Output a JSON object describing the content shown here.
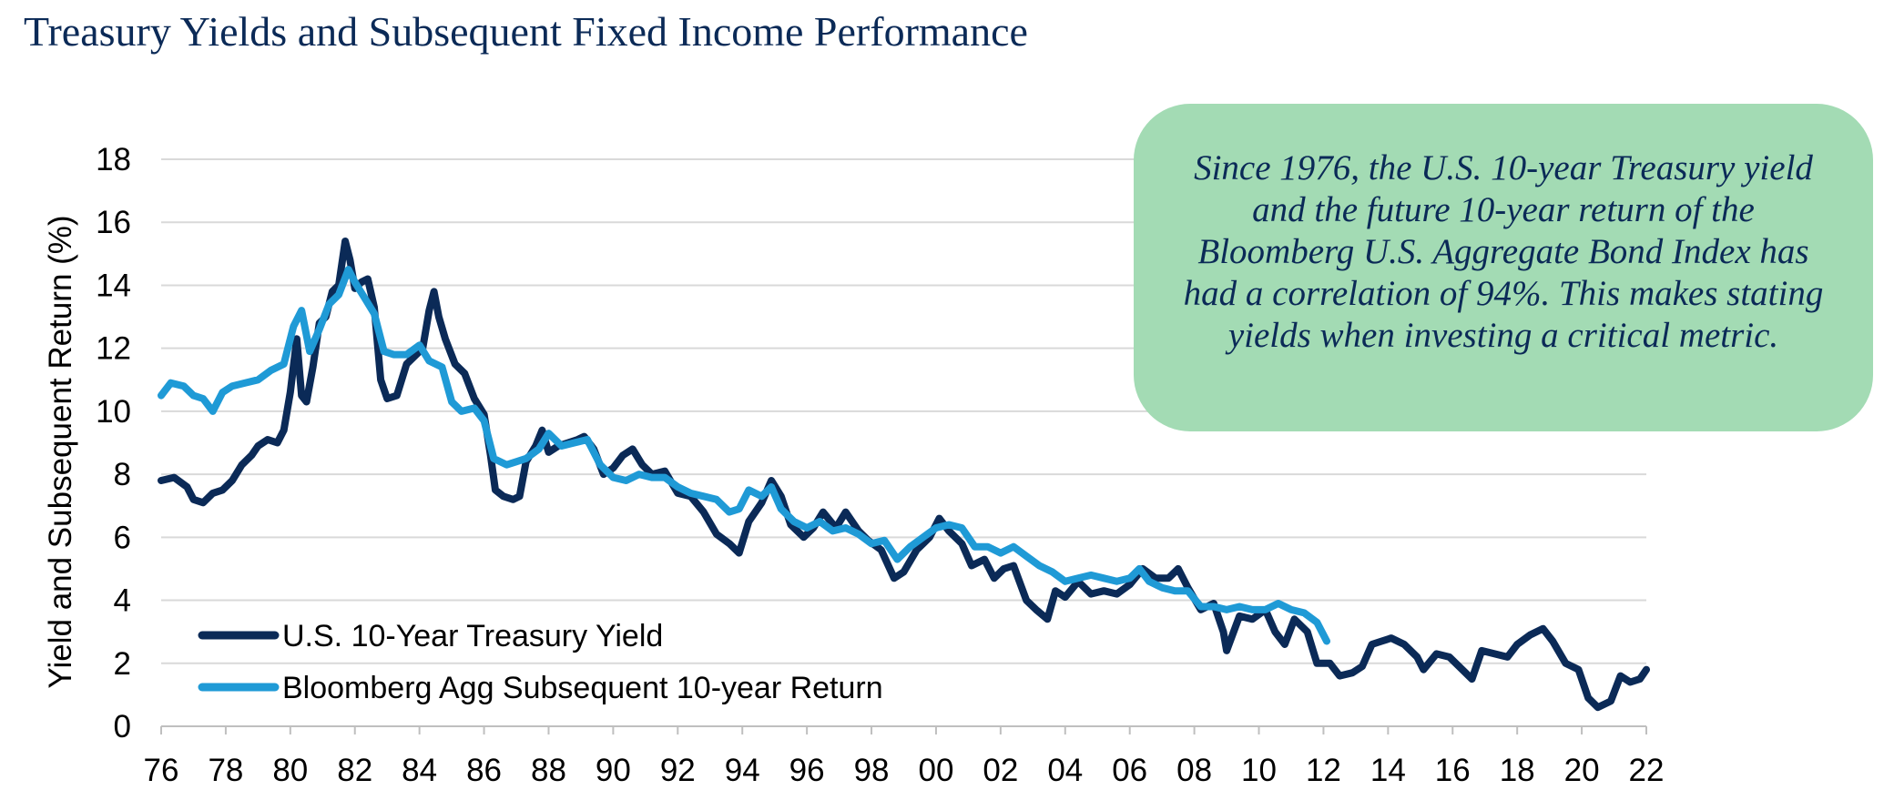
{
  "title": "Treasury Yields and Subsequent Fixed Income Performance",
  "callout": {
    "text": "Since 1976, the U.S. 10-year Treasury yield and the future 10-year return of the Bloomberg U.S. Aggregate Bond Index has had a correlation of 94%. This makes stating yields when investing a critical metric."
  },
  "chart_data": {
    "type": "line",
    "title": "Treasury Yields and Subsequent Fixed Income Performance",
    "xlabel": "",
    "ylabel": "Yield and Subsequent Return (%)",
    "xlim": [
      1976,
      2022
    ],
    "ylim": [
      0,
      18
    ],
    "x_ticks": [
      1976,
      1978,
      1980,
      1982,
      1984,
      1986,
      1988,
      1990,
      1992,
      1994,
      1996,
      1998,
      2000,
      2002,
      2004,
      2006,
      2008,
      2010,
      2012,
      2014,
      2016,
      2018,
      2020,
      2022
    ],
    "x_tick_labels": [
      "76",
      "78",
      "80",
      "82",
      "84",
      "86",
      "88",
      "90",
      "92",
      "94",
      "96",
      "98",
      "00",
      "02",
      "04",
      "06",
      "08",
      "10",
      "12",
      "14",
      "16",
      "18",
      "20",
      "22"
    ],
    "y_ticks": [
      0,
      2,
      4,
      6,
      8,
      10,
      12,
      14,
      16,
      18
    ],
    "y_tick_labels": [
      "0",
      "2",
      "4",
      "6",
      "8",
      "10",
      "12",
      "14",
      "16",
      "18"
    ],
    "grid": "horizontal",
    "legend_position": "bottom-left",
    "series": [
      {
        "name": "U.S. 10-Year Treasury Yield",
        "color": "#0b2a57",
        "points": [
          [
            1976.0,
            7.8
          ],
          [
            1976.4,
            7.9
          ],
          [
            1976.8,
            7.6
          ],
          [
            1977.0,
            7.2
          ],
          [
            1977.3,
            7.1
          ],
          [
            1977.6,
            7.4
          ],
          [
            1977.9,
            7.5
          ],
          [
            1978.2,
            7.8
          ],
          [
            1978.5,
            8.3
          ],
          [
            1978.8,
            8.6
          ],
          [
            1979.0,
            8.9
          ],
          [
            1979.3,
            9.1
          ],
          [
            1979.6,
            9.0
          ],
          [
            1979.8,
            9.4
          ],
          [
            1980.0,
            10.6
          ],
          [
            1980.2,
            12.3
          ],
          [
            1980.35,
            10.5
          ],
          [
            1980.5,
            10.3
          ],
          [
            1980.7,
            11.4
          ],
          [
            1980.9,
            12.8
          ],
          [
            1981.1,
            13.0
          ],
          [
            1981.3,
            13.8
          ],
          [
            1981.5,
            14.0
          ],
          [
            1981.7,
            15.4
          ],
          [
            1981.85,
            14.8
          ],
          [
            1982.0,
            13.9
          ],
          [
            1982.2,
            14.1
          ],
          [
            1982.4,
            14.2
          ],
          [
            1982.6,
            13.3
          ],
          [
            1982.8,
            11.0
          ],
          [
            1983.0,
            10.4
          ],
          [
            1983.3,
            10.5
          ],
          [
            1983.6,
            11.5
          ],
          [
            1983.9,
            11.8
          ],
          [
            1984.1,
            12.0
          ],
          [
            1984.3,
            13.2
          ],
          [
            1984.45,
            13.8
          ],
          [
            1984.6,
            13.0
          ],
          [
            1984.8,
            12.3
          ],
          [
            1985.1,
            11.5
          ],
          [
            1985.4,
            11.2
          ],
          [
            1985.7,
            10.4
          ],
          [
            1986.0,
            9.9
          ],
          [
            1986.2,
            8.6
          ],
          [
            1986.35,
            7.5
          ],
          [
            1986.6,
            7.3
          ],
          [
            1986.9,
            7.2
          ],
          [
            1987.1,
            7.3
          ],
          [
            1987.3,
            8.4
          ],
          [
            1987.6,
            8.9
          ],
          [
            1987.8,
            9.4
          ],
          [
            1988.0,
            8.7
          ],
          [
            1988.3,
            8.9
          ],
          [
            1988.6,
            9.0
          ],
          [
            1988.9,
            9.1
          ],
          [
            1989.1,
            9.2
          ],
          [
            1989.4,
            8.8
          ],
          [
            1989.7,
            8.0
          ],
          [
            1990.0,
            8.2
          ],
          [
            1990.3,
            8.6
          ],
          [
            1990.6,
            8.8
          ],
          [
            1990.9,
            8.3
          ],
          [
            1991.2,
            8.0
          ],
          [
            1991.6,
            8.1
          ],
          [
            1992.0,
            7.4
          ],
          [
            1992.4,
            7.3
          ],
          [
            1992.8,
            6.8
          ],
          [
            1993.2,
            6.1
          ],
          [
            1993.6,
            5.8
          ],
          [
            1993.9,
            5.5
          ],
          [
            1994.2,
            6.5
          ],
          [
            1994.6,
            7.1
          ],
          [
            1994.9,
            7.8
          ],
          [
            1995.2,
            7.3
          ],
          [
            1995.5,
            6.4
          ],
          [
            1995.9,
            6.0
          ],
          [
            1996.2,
            6.3
          ],
          [
            1996.5,
            6.8
          ],
          [
            1996.9,
            6.3
          ],
          [
            1997.2,
            6.8
          ],
          [
            1997.6,
            6.2
          ],
          [
            1997.9,
            5.9
          ],
          [
            1998.3,
            5.6
          ],
          [
            1998.7,
            4.7
          ],
          [
            1999.0,
            4.9
          ],
          [
            1999.4,
            5.6
          ],
          [
            1999.8,
            6.0
          ],
          [
            2000.1,
            6.6
          ],
          [
            2000.4,
            6.2
          ],
          [
            2000.8,
            5.8
          ],
          [
            2001.1,
            5.1
          ],
          [
            2001.5,
            5.3
          ],
          [
            2001.8,
            4.7
          ],
          [
            2002.1,
            5.0
          ],
          [
            2002.4,
            5.1
          ],
          [
            2002.8,
            4.0
          ],
          [
            2003.1,
            3.7
          ],
          [
            2003.45,
            3.4
          ],
          [
            2003.7,
            4.3
          ],
          [
            2004.0,
            4.1
          ],
          [
            2004.4,
            4.6
          ],
          [
            2004.8,
            4.2
          ],
          [
            2005.2,
            4.3
          ],
          [
            2005.6,
            4.2
          ],
          [
            2006.0,
            4.5
          ],
          [
            2006.4,
            5.0
          ],
          [
            2006.8,
            4.7
          ],
          [
            2007.2,
            4.7
          ],
          [
            2007.5,
            5.0
          ],
          [
            2007.8,
            4.4
          ],
          [
            2008.2,
            3.7
          ],
          [
            2008.6,
            3.9
          ],
          [
            2008.9,
            3.0
          ],
          [
            2009.0,
            2.4
          ],
          [
            2009.4,
            3.5
          ],
          [
            2009.8,
            3.4
          ],
          [
            2010.2,
            3.7
          ],
          [
            2010.5,
            3.0
          ],
          [
            2010.8,
            2.6
          ],
          [
            2011.1,
            3.4
          ],
          [
            2011.5,
            3.0
          ],
          [
            2011.8,
            2.0
          ],
          [
            2012.2,
            2.0
          ],
          [
            2012.5,
            1.6
          ],
          [
            2012.9,
            1.7
          ],
          [
            2013.2,
            1.9
          ],
          [
            2013.5,
            2.6
          ],
          [
            2013.8,
            2.7
          ],
          [
            2014.1,
            2.8
          ],
          [
            2014.5,
            2.6
          ],
          [
            2014.9,
            2.2
          ],
          [
            2015.1,
            1.8
          ],
          [
            2015.5,
            2.3
          ],
          [
            2015.9,
            2.2
          ],
          [
            2016.3,
            1.8
          ],
          [
            2016.6,
            1.5
          ],
          [
            2016.9,
            2.4
          ],
          [
            2017.3,
            2.3
          ],
          [
            2017.7,
            2.2
          ],
          [
            2018.0,
            2.6
          ],
          [
            2018.4,
            2.9
          ],
          [
            2018.8,
            3.1
          ],
          [
            2019.1,
            2.7
          ],
          [
            2019.5,
            2.0
          ],
          [
            2019.9,
            1.8
          ],
          [
            2020.2,
            0.9
          ],
          [
            2020.5,
            0.6
          ],
          [
            2020.9,
            0.8
          ],
          [
            2021.2,
            1.6
          ],
          [
            2021.5,
            1.4
          ],
          [
            2021.8,
            1.5
          ],
          [
            2022.0,
            1.8
          ]
        ]
      },
      {
        "name": "Bloomberg Agg Subsequent 10-year Return",
        "color": "#1f9ad6",
        "points": [
          [
            1976.0,
            10.5
          ],
          [
            1976.3,
            10.9
          ],
          [
            1976.7,
            10.8
          ],
          [
            1977.0,
            10.5
          ],
          [
            1977.3,
            10.4
          ],
          [
            1977.6,
            10.0
          ],
          [
            1977.9,
            10.6
          ],
          [
            1978.2,
            10.8
          ],
          [
            1978.6,
            10.9
          ],
          [
            1979.0,
            11.0
          ],
          [
            1979.4,
            11.3
          ],
          [
            1979.8,
            11.5
          ],
          [
            1980.1,
            12.7
          ],
          [
            1980.35,
            13.2
          ],
          [
            1980.6,
            11.9
          ],
          [
            1980.9,
            12.6
          ],
          [
            1981.2,
            13.4
          ],
          [
            1981.5,
            13.7
          ],
          [
            1981.8,
            14.5
          ],
          [
            1982.0,
            14.1
          ],
          [
            1982.3,
            13.6
          ],
          [
            1982.6,
            13.1
          ],
          [
            1982.9,
            11.9
          ],
          [
            1983.2,
            11.8
          ],
          [
            1983.6,
            11.8
          ],
          [
            1984.0,
            12.1
          ],
          [
            1984.3,
            11.6
          ],
          [
            1984.7,
            11.4
          ],
          [
            1985.0,
            10.3
          ],
          [
            1985.3,
            10.0
          ],
          [
            1985.7,
            10.1
          ],
          [
            1986.0,
            9.7
          ],
          [
            1986.3,
            8.5
          ],
          [
            1986.7,
            8.3
          ],
          [
            1987.0,
            8.4
          ],
          [
            1987.3,
            8.5
          ],
          [
            1987.7,
            8.8
          ],
          [
            1988.0,
            9.3
          ],
          [
            1988.4,
            8.9
          ],
          [
            1988.8,
            9.0
          ],
          [
            1989.2,
            9.1
          ],
          [
            1989.6,
            8.3
          ],
          [
            1990.0,
            7.9
          ],
          [
            1990.4,
            7.8
          ],
          [
            1990.8,
            8.0
          ],
          [
            1991.2,
            7.9
          ],
          [
            1991.6,
            7.9
          ],
          [
            1992.0,
            7.6
          ],
          [
            1992.4,
            7.4
          ],
          [
            1992.8,
            7.3
          ],
          [
            1993.2,
            7.2
          ],
          [
            1993.6,
            6.8
          ],
          [
            1993.9,
            6.9
          ],
          [
            1994.2,
            7.5
          ],
          [
            1994.6,
            7.3
          ],
          [
            1994.9,
            7.6
          ],
          [
            1995.2,
            6.9
          ],
          [
            1995.6,
            6.5
          ],
          [
            1996.0,
            6.3
          ],
          [
            1996.4,
            6.5
          ],
          [
            1996.8,
            6.2
          ],
          [
            1997.2,
            6.3
          ],
          [
            1997.6,
            6.1
          ],
          [
            1998.0,
            5.8
          ],
          [
            1998.4,
            5.9
          ],
          [
            1998.8,
            5.3
          ],
          [
            1999.2,
            5.7
          ],
          [
            1999.6,
            6.0
          ],
          [
            2000.0,
            6.3
          ],
          [
            2000.4,
            6.4
          ],
          [
            2000.8,
            6.3
          ],
          [
            2001.2,
            5.7
          ],
          [
            2001.6,
            5.7
          ],
          [
            2002.0,
            5.5
          ],
          [
            2002.4,
            5.7
          ],
          [
            2002.8,
            5.4
          ],
          [
            2003.2,
            5.1
          ],
          [
            2003.6,
            4.9
          ],
          [
            2004.0,
            4.6
          ],
          [
            2004.4,
            4.7
          ],
          [
            2004.8,
            4.8
          ],
          [
            2005.2,
            4.7
          ],
          [
            2005.6,
            4.6
          ],
          [
            2006.0,
            4.7
          ],
          [
            2006.3,
            5.0
          ],
          [
            2006.6,
            4.6
          ],
          [
            2007.0,
            4.4
          ],
          [
            2007.4,
            4.3
          ],
          [
            2007.8,
            4.3
          ],
          [
            2008.2,
            3.8
          ],
          [
            2008.6,
            3.8
          ],
          [
            2009.0,
            3.7
          ],
          [
            2009.4,
            3.8
          ],
          [
            2009.8,
            3.7
          ],
          [
            2010.2,
            3.7
          ],
          [
            2010.6,
            3.9
          ],
          [
            2011.0,
            3.7
          ],
          [
            2011.4,
            3.6
          ],
          [
            2011.8,
            3.3
          ],
          [
            2012.1,
            2.7
          ]
        ]
      }
    ]
  }
}
